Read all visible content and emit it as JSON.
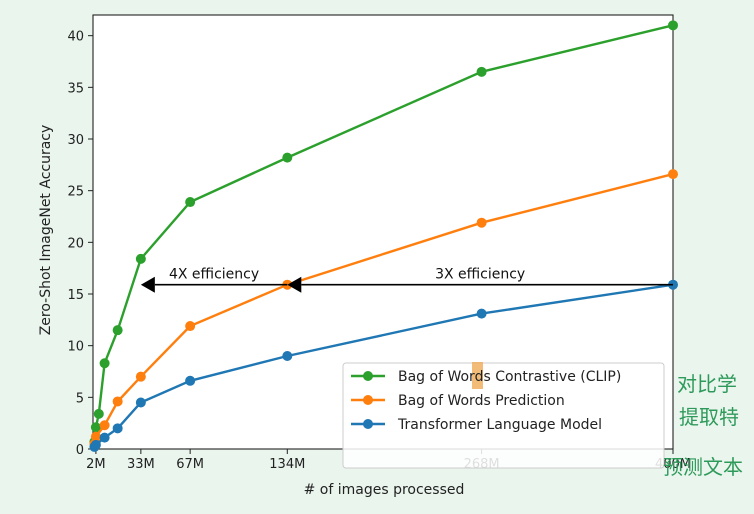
{
  "chart_data": {
    "type": "line",
    "xlabel": "# of images processed",
    "ylabel": "Zero-Shot ImageNet Accuracy",
    "xlim": [
      0,
      400
    ],
    "ylim": [
      0,
      42
    ],
    "x_ticks": [
      {
        "value": 2,
        "label": "2M"
      },
      {
        "value": 33,
        "label": "33M"
      },
      {
        "value": 67,
        "label": "67M"
      },
      {
        "value": 134,
        "label": "134M"
      },
      {
        "value": 268,
        "label": "268M"
      },
      {
        "value": 400,
        "label": "400M"
      }
    ],
    "y_ticks": [
      0,
      5,
      10,
      15,
      20,
      25,
      30,
      35,
      40
    ],
    "legend_position": "lower-right",
    "series": [
      {
        "name": "Bag of Words Contrastive (CLIP)",
        "color": "#2ca02c",
        "points": [
          [
            1,
            0.7
          ],
          [
            2,
            2.1
          ],
          [
            4,
            3.4
          ],
          [
            8,
            8.3
          ],
          [
            17,
            11.5
          ],
          [
            33,
            18.4
          ],
          [
            67,
            23.9
          ],
          [
            134,
            28.2
          ],
          [
            268,
            36.5
          ],
          [
            400,
            41.0
          ]
        ]
      },
      {
        "name": "Bag of Words Prediction",
        "color": "#ff7f0e",
        "points": [
          [
            1,
            0.5
          ],
          [
            2,
            1.2
          ],
          [
            8,
            2.3
          ],
          [
            17,
            4.6
          ],
          [
            33,
            7.0
          ],
          [
            67,
            11.9
          ],
          [
            134,
            15.9
          ],
          [
            268,
            21.9
          ],
          [
            400,
            26.6
          ]
        ]
      },
      {
        "name": "Transformer Language Model",
        "color": "#1f77b4",
        "points": [
          [
            1,
            0.2
          ],
          [
            2,
            0.4
          ],
          [
            8,
            1.1
          ],
          [
            17,
            2.0
          ],
          [
            33,
            4.5
          ],
          [
            67,
            6.6
          ],
          [
            134,
            9.0
          ],
          [
            268,
            13.1
          ],
          [
            400,
            15.9
          ]
        ]
      }
    ],
    "annotations": [
      {
        "text": "4X efficiency",
        "from_x": 134,
        "to_x": 33,
        "y": 15.9
      },
      {
        "text": "3X efficiency",
        "from_x": 400,
        "to_x": 134,
        "y": 15.9
      }
    ]
  },
  "overlay": {
    "chinese_lines": [
      "对比学",
      "提取特",
      "预测文本"
    ],
    "highlight_color": "#f0b060"
  }
}
